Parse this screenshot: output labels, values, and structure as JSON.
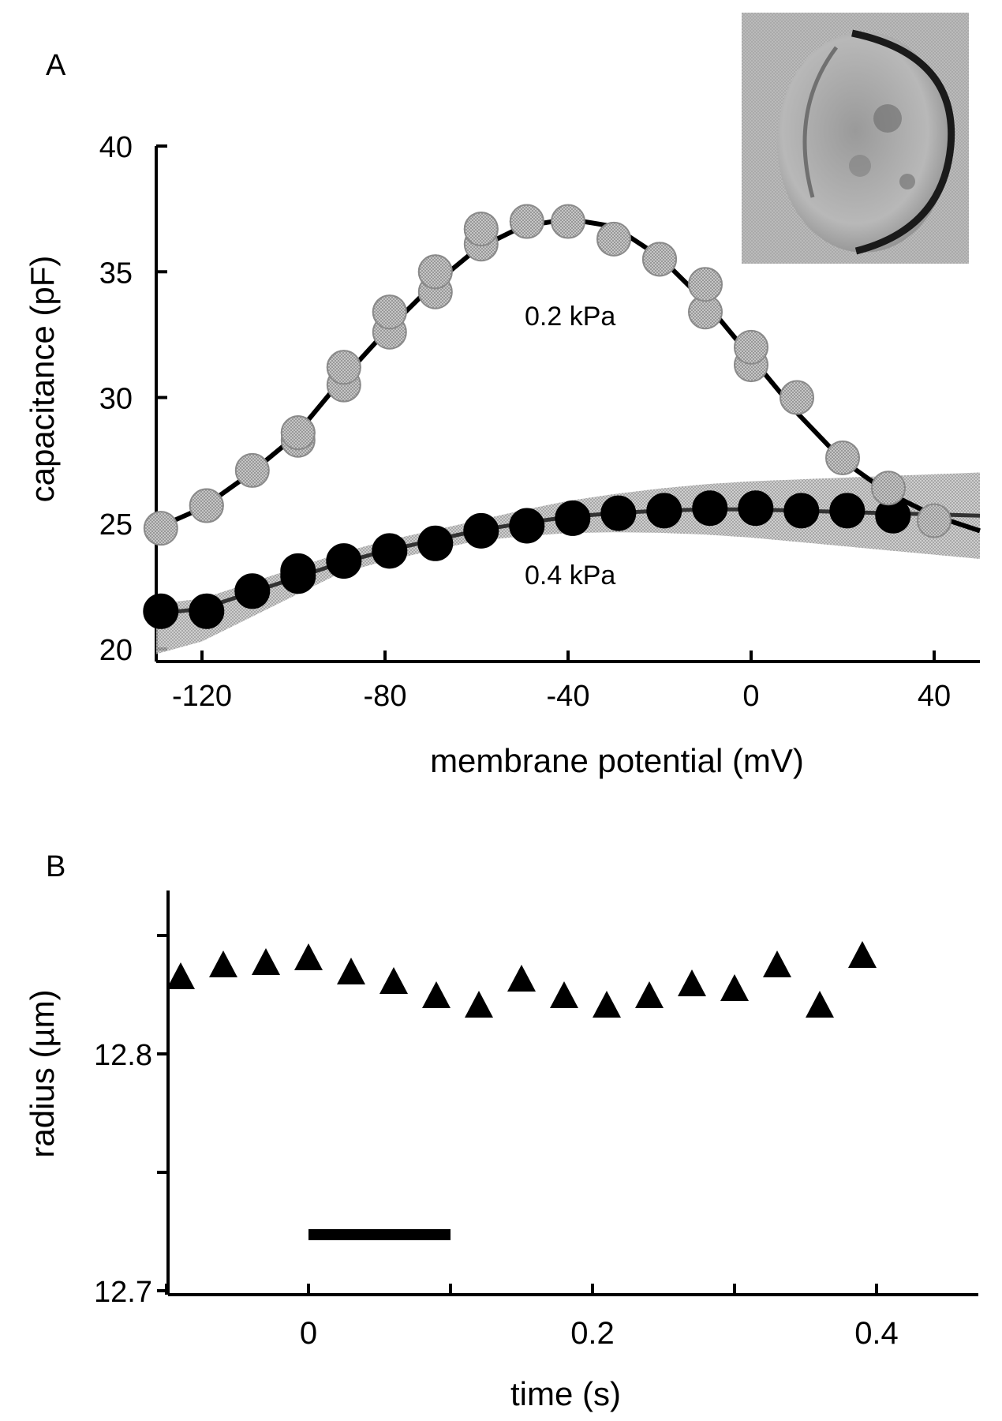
{
  "chart_data": [
    {
      "panel_label": "A",
      "type": "scatter",
      "xlabel": "membrane potential (mV)",
      "ylabel": "capacitance (pF)",
      "xlim": [
        -130,
        50
      ],
      "ylim": [
        19.5,
        40
      ],
      "xticks": [
        -120,
        -80,
        -40,
        0,
        40
      ],
      "yticks": [
        20,
        25,
        30,
        35,
        40
      ],
      "inset": "cell micrograph (top-right)",
      "series": [
        {
          "name": "0.2 kPa",
          "marker": "circle",
          "color": "#a8a8a8",
          "fit_line": true,
          "x": [
            -129,
            -119,
            -119,
            -109,
            -99,
            -99,
            -99,
            -89,
            -89,
            -89,
            -79,
            -79,
            -79,
            -69,
            -69,
            -69,
            -59,
            -59,
            -59,
            -49,
            -49,
            -40,
            -30,
            -20,
            -20,
            -10,
            -10,
            0,
            0,
            10,
            20,
            30,
            40
          ],
          "y": [
            24.8,
            25.7,
            25.7,
            27.1,
            28.3,
            28.6,
            28.6,
            30.5,
            31.2,
            31.2,
            32.6,
            33.4,
            33.4,
            34.2,
            35.0,
            35.0,
            36.1,
            36.7,
            36.7,
            37.0,
            37.0,
            37.0,
            36.3,
            35.5,
            35.5,
            33.4,
            34.5,
            31.3,
            32.0,
            30.0,
            27.6,
            26.4,
            25.1
          ]
        },
        {
          "name": "0.4 kPa",
          "marker": "circle",
          "color": "#000000",
          "fit_line": true,
          "confidence_band": true,
          "x": [
            -129,
            -119,
            -109,
            -99,
            -99,
            -89,
            -79,
            -69,
            -59,
            -49,
            -39,
            -29,
            -19,
            -9,
            1,
            11,
            21,
            31
          ],
          "y": [
            21.5,
            21.5,
            22.3,
            22.9,
            23.1,
            23.5,
            23.9,
            24.2,
            24.7,
            24.9,
            25.2,
            25.4,
            25.5,
            25.6,
            25.6,
            25.5,
            25.5,
            25.3
          ]
        }
      ]
    },
    {
      "panel_label": "B",
      "type": "scatter",
      "xlabel": "time (s)",
      "ylabel": "radius (µm)",
      "xlim": [
        -0.11,
        0.46
      ],
      "ylim": [
        12.698,
        12.905
      ],
      "xticks": [
        0,
        0.2,
        0.4
      ],
      "ylabels": [
        "12.7",
        "12.8"
      ],
      "series": [
        {
          "marker": "triangle",
          "color": "#000000",
          "x": [
            -0.09,
            -0.06,
            -0.03,
            0.0,
            0.03,
            0.06,
            0.09,
            0.12,
            0.15,
            0.18,
            0.21,
            0.24,
            0.27,
            0.3,
            0.33,
            0.36,
            0.39
          ],
          "y": [
            12.833,
            12.838,
            12.839,
            12.841,
            12.835,
            12.831,
            12.825,
            12.821,
            12.832,
            12.825,
            12.821,
            12.825,
            12.83,
            12.828,
            12.838,
            12.821,
            12.842
          ]
        }
      ],
      "stimulus_bar": [
        0,
        0.1
      ]
    }
  ]
}
